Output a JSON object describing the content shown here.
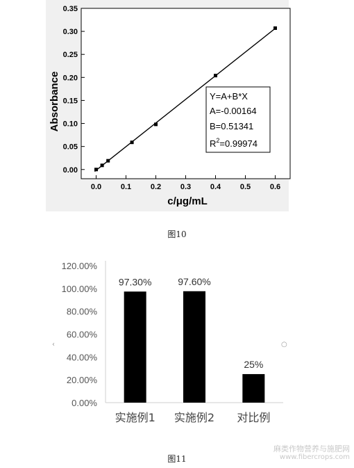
{
  "charts": [
    {
      "type": "scatter",
      "xlabel": "c/μg/mL",
      "ylabel": "Absorbance",
      "xlim": [
        -0.05,
        0.65
      ],
      "ylim": [
        -0.02,
        0.35
      ],
      "xticks": [
        "0.0",
        "0.1",
        "0.2",
        "0.3",
        "0.4",
        "0.5",
        "0.6"
      ],
      "xtick_values": [
        0,
        0.1,
        0.2,
        0.3,
        0.4,
        0.5,
        0.6
      ],
      "yticks": [
        "0.00",
        "0.05",
        "0.10",
        "0.15",
        "0.20",
        "0.25",
        "0.30",
        "0.35"
      ],
      "ytick_values": [
        0,
        0.05,
        0.1,
        0.15,
        0.2,
        0.25,
        0.3,
        0.35
      ],
      "points": [
        {
          "x": 0.0,
          "y": 0.0
        },
        {
          "x": 0.02,
          "y": 0.009
        },
        {
          "x": 0.04,
          "y": 0.019
        },
        {
          "x": 0.12,
          "y": 0.059
        },
        {
          "x": 0.2,
          "y": 0.098
        },
        {
          "x": 0.4,
          "y": 0.204
        },
        {
          "x": 0.6,
          "y": 0.307
        }
      ],
      "fit": {
        "intercept": -0.00164,
        "slope": 0.51341
      },
      "annotation": [
        "Y=A+B*X",
        "A=-0.00164",
        "B=0.51341",
        "R",
        "2",
        "=0.99974"
      ],
      "grid": false
    },
    {
      "type": "bar",
      "categories": [
        "实施例1",
        "实施例2",
        "对比例"
      ],
      "values": [
        97.3,
        97.6,
        25
      ],
      "data_labels": [
        "97.30%",
        "97.60%",
        "25%"
      ],
      "yticks": [
        "0.00%",
        "20.00%",
        "40.00%",
        "60.00%",
        "80.00%",
        "100.00%",
        "120.00%"
      ],
      "ytick_values": [
        0,
        20,
        40,
        60,
        80,
        100,
        120
      ],
      "ylim": [
        0,
        120
      ],
      "bar_color": "#000000",
      "grid": false
    }
  ],
  "captions": {
    "fig10": "图10",
    "fig11": "图11"
  },
  "watermark": {
    "line1": "麻类作物营养与施肥网",
    "line2": "www.fibercrops.com"
  }
}
